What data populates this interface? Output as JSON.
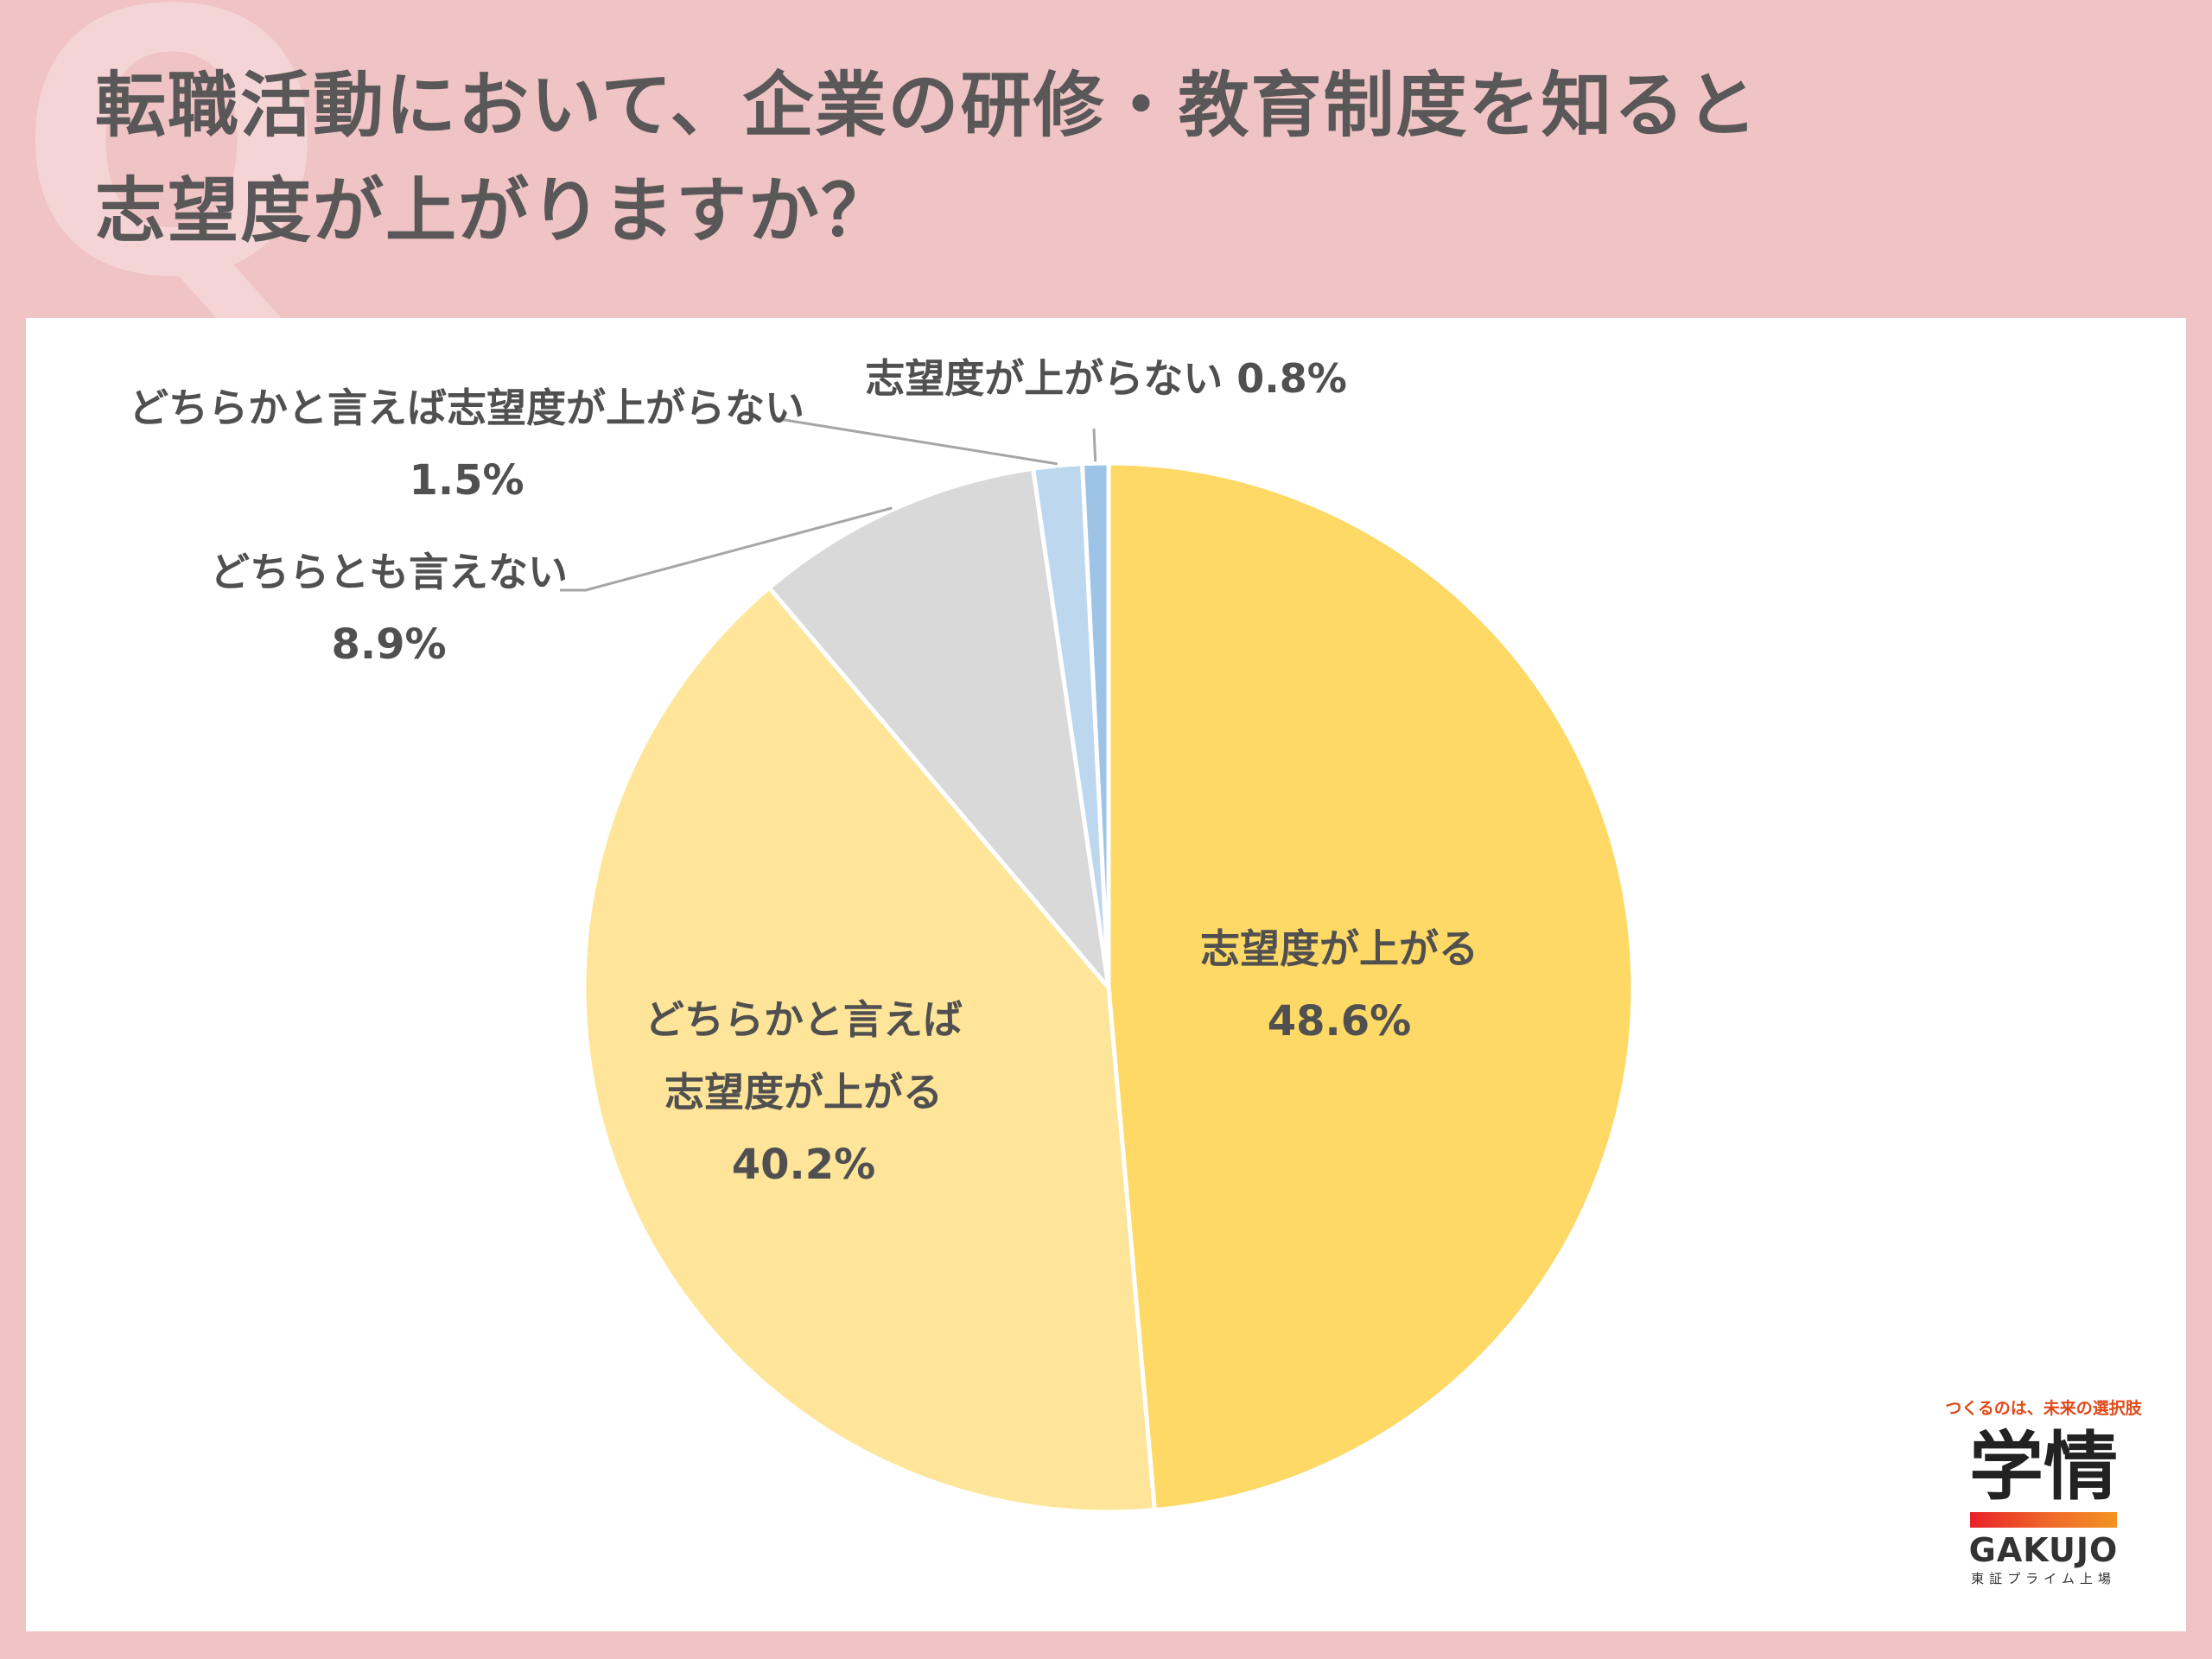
{
  "title": {
    "line1": "転職活動において、企業の研修・教育制度を知ると",
    "line2": "志望度が上がりますか？"
  },
  "chart_data": {
    "type": "pie",
    "slices": [
      {
        "label": "志望度が上がる",
        "value": 48.6,
        "pct_text": "48.6%",
        "color": "#fed966"
      },
      {
        "label": "どちらかと言えば志望度が上がる",
        "value": 40.2,
        "pct_text": "40.2%",
        "color": "#fee599"
      },
      {
        "label": "どちらとも言えない",
        "value": 8.9,
        "pct_text": "8.9%",
        "color": "#d9d9d9"
      },
      {
        "label": "どちらかと言えば志望度が上がらない",
        "value": 1.5,
        "pct_text": "1.5%",
        "color": "#bdd7ee"
      },
      {
        "label": "志望度が上がらない",
        "value": 0.8,
        "pct_text": "0.8%",
        "color": "#9dc3e6"
      }
    ]
  },
  "labels": {
    "s0_line1": "志望度が上がる",
    "s1_line1": "どちらかと言えば",
    "s1_line2": "志望度が上がる",
    "s2_line1": "どちらとも言えない",
    "s3_line1": "どちらかと言えば志望度が上がらない",
    "s4_full": "志望度が上がらない 0.8%"
  },
  "logo": {
    "tagline": "つくるのは、未来の選択肢",
    "kanji": "学情",
    "name": "GAKUJO",
    "sub": "東証プライム上場"
  }
}
